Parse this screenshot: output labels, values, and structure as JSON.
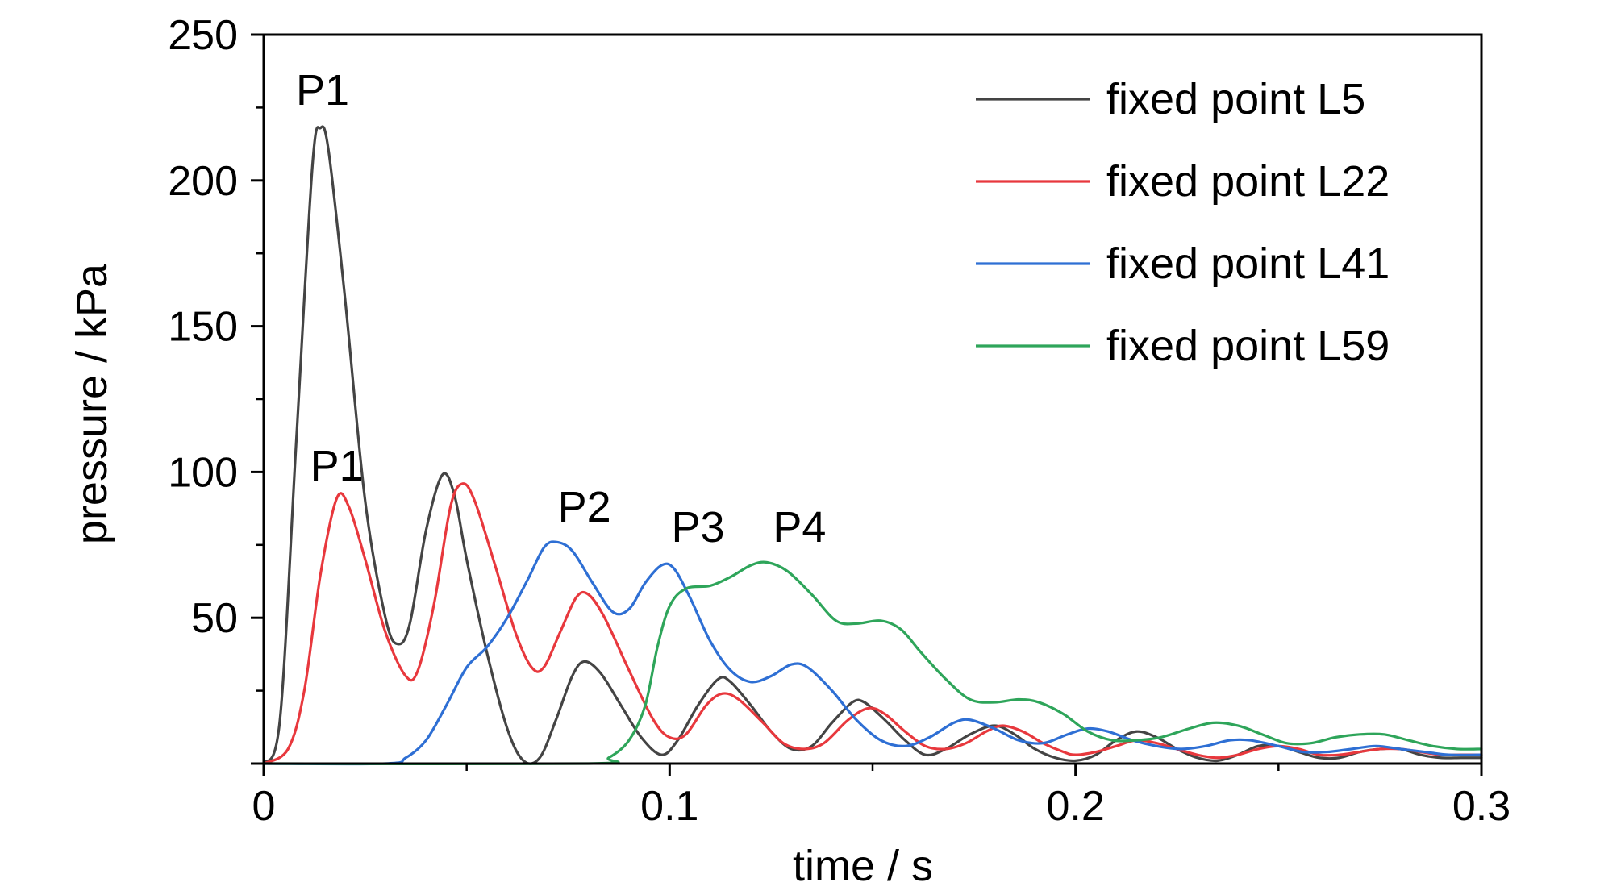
{
  "chart_data": {
    "type": "line",
    "title": "",
    "xlabel": "time / s",
    "ylabel": "pressure / kPa",
    "xlim": [
      0,
      0.3
    ],
    "ylim": [
      0,
      250
    ],
    "grid": false,
    "legend_position": "top-right",
    "x_ticks": [
      {
        "value": 0,
        "label": "0"
      },
      {
        "value": 0.1,
        "label": "0.1"
      },
      {
        "value": 0.2,
        "label": "0.2"
      },
      {
        "value": 0.3,
        "label": "0.3"
      }
    ],
    "y_ticks": [
      {
        "value": 50,
        "label": "50"
      },
      {
        "value": 100,
        "label": "100"
      },
      {
        "value": 150,
        "label": "150"
      },
      {
        "value": 200,
        "label": "200"
      },
      {
        "value": 250,
        "label": "250"
      }
    ],
    "series": [
      {
        "name": "fixed point L5",
        "color": "#444444",
        "points": [
          [
            0,
            0
          ],
          [
            0.004,
            15
          ],
          [
            0.008,
            110
          ],
          [
            0.012,
            205
          ],
          [
            0.014,
            218
          ],
          [
            0.016,
            210
          ],
          [
            0.02,
            160
          ],
          [
            0.025,
            90
          ],
          [
            0.03,
            50
          ],
          [
            0.033,
            41
          ],
          [
            0.036,
            48
          ],
          [
            0.04,
            80
          ],
          [
            0.044,
            99
          ],
          [
            0.047,
            92
          ],
          [
            0.05,
            70
          ],
          [
            0.055,
            38
          ],
          [
            0.06,
            12
          ],
          [
            0.064,
            1
          ],
          [
            0.068,
            2
          ],
          [
            0.072,
            15
          ],
          [
            0.076,
            30
          ],
          [
            0.079,
            35
          ],
          [
            0.083,
            31
          ],
          [
            0.088,
            20
          ],
          [
            0.093,
            9
          ],
          [
            0.098,
            3
          ],
          [
            0.102,
            8
          ],
          [
            0.107,
            20
          ],
          [
            0.112,
            29
          ],
          [
            0.115,
            28
          ],
          [
            0.12,
            20
          ],
          [
            0.125,
            11
          ],
          [
            0.13,
            5
          ],
          [
            0.135,
            6
          ],
          [
            0.14,
            14
          ],
          [
            0.145,
            21
          ],
          [
            0.148,
            21
          ],
          [
            0.153,
            15
          ],
          [
            0.158,
            8
          ],
          [
            0.163,
            3
          ],
          [
            0.168,
            5
          ],
          [
            0.174,
            10
          ],
          [
            0.18,
            13
          ],
          [
            0.185,
            10
          ],
          [
            0.19,
            5
          ],
          [
            0.195,
            2
          ],
          [
            0.2,
            1
          ],
          [
            0.205,
            3
          ],
          [
            0.21,
            8
          ],
          [
            0.215,
            11
          ],
          [
            0.22,
            9
          ],
          [
            0.225,
            5
          ],
          [
            0.23,
            2
          ],
          [
            0.235,
            1
          ],
          [
            0.24,
            3
          ],
          [
            0.245,
            6
          ],
          [
            0.25,
            6
          ],
          [
            0.255,
            4
          ],
          [
            0.26,
            2
          ],
          [
            0.265,
            2
          ],
          [
            0.27,
            4
          ],
          [
            0.275,
            5
          ],
          [
            0.28,
            5
          ],
          [
            0.285,
            3
          ],
          [
            0.29,
            2
          ],
          [
            0.295,
            2
          ],
          [
            0.3,
            2
          ]
        ]
      },
      {
        "name": "fixed point L22",
        "color": "#e8383d",
        "points": [
          [
            0,
            0
          ],
          [
            0.006,
            5
          ],
          [
            0.01,
            25
          ],
          [
            0.014,
            65
          ],
          [
            0.018,
            91
          ],
          [
            0.021,
            88
          ],
          [
            0.025,
            70
          ],
          [
            0.03,
            45
          ],
          [
            0.035,
            30
          ],
          [
            0.038,
            32
          ],
          [
            0.042,
            55
          ],
          [
            0.046,
            88
          ],
          [
            0.049,
            96
          ],
          [
            0.052,
            90
          ],
          [
            0.057,
            68
          ],
          [
            0.062,
            45
          ],
          [
            0.066,
            33
          ],
          [
            0.069,
            33
          ],
          [
            0.073,
            45
          ],
          [
            0.077,
            57
          ],
          [
            0.08,
            58
          ],
          [
            0.084,
            50
          ],
          [
            0.09,
            32
          ],
          [
            0.096,
            15
          ],
          [
            0.1,
            9
          ],
          [
            0.104,
            10
          ],
          [
            0.109,
            20
          ],
          [
            0.113,
            24
          ],
          [
            0.117,
            22
          ],
          [
            0.123,
            14
          ],
          [
            0.128,
            7
          ],
          [
            0.133,
            5
          ],
          [
            0.138,
            7
          ],
          [
            0.144,
            15
          ],
          [
            0.149,
            19
          ],
          [
            0.153,
            17
          ],
          [
            0.158,
            11
          ],
          [
            0.163,
            6
          ],
          [
            0.168,
            5
          ],
          [
            0.173,
            7
          ],
          [
            0.178,
            11
          ],
          [
            0.182,
            13
          ],
          [
            0.187,
            11
          ],
          [
            0.192,
            7
          ],
          [
            0.197,
            4
          ],
          [
            0.2,
            3
          ],
          [
            0.205,
            4
          ],
          [
            0.21,
            6
          ],
          [
            0.215,
            8
          ],
          [
            0.22,
            7
          ],
          [
            0.225,
            5
          ],
          [
            0.23,
            3
          ],
          [
            0.235,
            2
          ],
          [
            0.24,
            3
          ],
          [
            0.245,
            5
          ],
          [
            0.25,
            6
          ],
          [
            0.255,
            5
          ],
          [
            0.26,
            3
          ],
          [
            0.265,
            3
          ],
          [
            0.27,
            4
          ],
          [
            0.275,
            5
          ],
          [
            0.28,
            5
          ],
          [
            0.285,
            4
          ],
          [
            0.29,
            3
          ],
          [
            0.295,
            3
          ],
          [
            0.3,
            3
          ]
        ]
      },
      {
        "name": "fixed point L41",
        "color": "#2e6fd4",
        "points": [
          [
            0,
            0
          ],
          [
            0.03,
            0
          ],
          [
            0.035,
            2
          ],
          [
            0.04,
            8
          ],
          [
            0.045,
            20
          ],
          [
            0.05,
            33
          ],
          [
            0.055,
            40
          ],
          [
            0.06,
            50
          ],
          [
            0.065,
            63
          ],
          [
            0.069,
            74
          ],
          [
            0.072,
            76
          ],
          [
            0.076,
            73
          ],
          [
            0.081,
            62
          ],
          [
            0.086,
            52
          ],
          [
            0.09,
            53
          ],
          [
            0.094,
            62
          ],
          [
            0.098,
            68
          ],
          [
            0.101,
            67
          ],
          [
            0.105,
            57
          ],
          [
            0.11,
            42
          ],
          [
            0.115,
            32
          ],
          [
            0.12,
            28
          ],
          [
            0.125,
            30
          ],
          [
            0.13,
            34
          ],
          [
            0.134,
            33
          ],
          [
            0.14,
            25
          ],
          [
            0.146,
            15
          ],
          [
            0.152,
            8
          ],
          [
            0.158,
            6
          ],
          [
            0.164,
            9
          ],
          [
            0.17,
            14
          ],
          [
            0.174,
            15
          ],
          [
            0.18,
            12
          ],
          [
            0.186,
            8
          ],
          [
            0.192,
            7
          ],
          [
            0.198,
            10
          ],
          [
            0.203,
            12
          ],
          [
            0.208,
            11
          ],
          [
            0.214,
            8
          ],
          [
            0.22,
            6
          ],
          [
            0.226,
            5
          ],
          [
            0.232,
            6
          ],
          [
            0.238,
            8
          ],
          [
            0.243,
            8
          ],
          [
            0.25,
            6
          ],
          [
            0.256,
            4
          ],
          [
            0.262,
            4
          ],
          [
            0.268,
            5
          ],
          [
            0.274,
            6
          ],
          [
            0.28,
            5
          ],
          [
            0.286,
            4
          ],
          [
            0.292,
            3
          ],
          [
            0.3,
            3
          ]
        ]
      },
      {
        "name": "fixed point L59",
        "color": "#2ea55a",
        "points": [
          [
            0,
            0
          ],
          [
            0.08,
            0
          ],
          [
            0.085,
            2
          ],
          [
            0.09,
            8
          ],
          [
            0.094,
            20
          ],
          [
            0.097,
            40
          ],
          [
            0.1,
            54
          ],
          [
            0.104,
            60
          ],
          [
            0.11,
            61
          ],
          [
            0.115,
            64
          ],
          [
            0.12,
            68
          ],
          [
            0.124,
            69
          ],
          [
            0.129,
            66
          ],
          [
            0.135,
            58
          ],
          [
            0.141,
            49
          ],
          [
            0.146,
            48
          ],
          [
            0.152,
            49
          ],
          [
            0.157,
            46
          ],
          [
            0.162,
            38
          ],
          [
            0.168,
            29
          ],
          [
            0.174,
            22
          ],
          [
            0.18,
            21
          ],
          [
            0.186,
            22
          ],
          [
            0.191,
            21
          ],
          [
            0.197,
            17
          ],
          [
            0.203,
            11
          ],
          [
            0.209,
            8
          ],
          [
            0.215,
            8
          ],
          [
            0.221,
            9
          ],
          [
            0.228,
            12
          ],
          [
            0.234,
            14
          ],
          [
            0.24,
            13
          ],
          [
            0.246,
            10
          ],
          [
            0.252,
            7
          ],
          [
            0.258,
            7
          ],
          [
            0.264,
            9
          ],
          [
            0.27,
            10
          ],
          [
            0.276,
            10
          ],
          [
            0.282,
            8
          ],
          [
            0.288,
            6
          ],
          [
            0.294,
            5
          ],
          [
            0.3,
            5
          ]
        ]
      }
    ],
    "annotations": [
      {
        "text": "P1",
        "x": 0.0145,
        "y": 226
      },
      {
        "text": "P1",
        "x": 0.018,
        "y": 97
      },
      {
        "text": "P2",
        "x": 0.079,
        "y": 83
      },
      {
        "text": "P3",
        "x": 0.107,
        "y": 76
      },
      {
        "text": "P4",
        "x": 0.132,
        "y": 76
      }
    ]
  }
}
